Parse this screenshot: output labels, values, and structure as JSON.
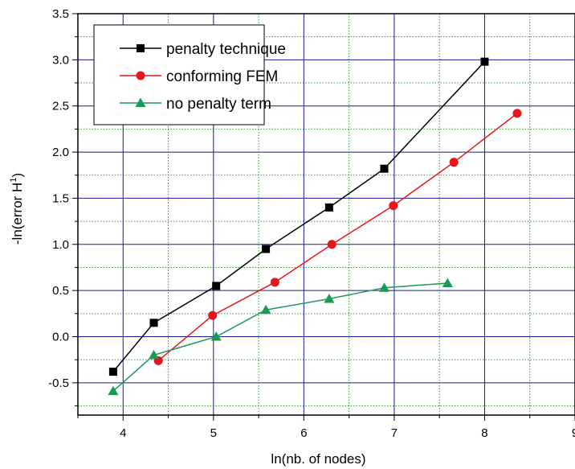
{
  "chart_data": {
    "type": "line",
    "xlabel": "ln(nb. of nodes)",
    "ylabel_main": "-ln(error H",
    "ylabel_sup": "1",
    "ylabel_close": ")",
    "xlim": [
      3.5,
      9
    ],
    "ylim": [
      -0.85,
      3.5
    ],
    "xticks": [
      4,
      5,
      6,
      7,
      8,
      9
    ],
    "xtick_labels": [
      "4",
      "5",
      "6",
      "7",
      "8",
      "9"
    ],
    "yticks": [
      -0.5,
      0.0,
      0.5,
      1.0,
      1.5,
      2.0,
      2.5,
      3.0,
      3.5
    ],
    "ytick_labels": [
      "-0.5",
      "0.0",
      "0.5",
      "1.0",
      "1.5",
      "2.0",
      "2.5",
      "3.0",
      "3.5"
    ],
    "grid": true,
    "major_grid_color": "#1a1a8c",
    "minor_grid_color": "#2e9a2e",
    "legend_position": "top-left",
    "series": [
      {
        "name": "penalty technique",
        "color": "#000000",
        "marker": "square",
        "x": [
          3.89,
          4.34,
          5.03,
          5.58,
          6.28,
          6.89,
          8.0
        ],
        "y": [
          -0.38,
          0.15,
          0.55,
          0.95,
          1.4,
          1.82,
          2.98
        ]
      },
      {
        "name": "conforming FEM",
        "color": "#e8141c",
        "marker": "circle",
        "x": [
          4.39,
          4.99,
          5.68,
          6.31,
          6.99,
          7.66,
          8.36
        ],
        "y": [
          -0.26,
          0.23,
          0.59,
          1.0,
          1.42,
          1.89,
          2.42
        ]
      },
      {
        "name": "no penalty term",
        "color": "#1a9a55",
        "marker": "triangle",
        "x": [
          3.89,
          4.34,
          5.03,
          5.58,
          6.28,
          6.89,
          7.59
        ],
        "y": [
          -0.59,
          -0.2,
          0.0,
          0.29,
          0.41,
          0.53,
          0.58
        ]
      }
    ]
  }
}
